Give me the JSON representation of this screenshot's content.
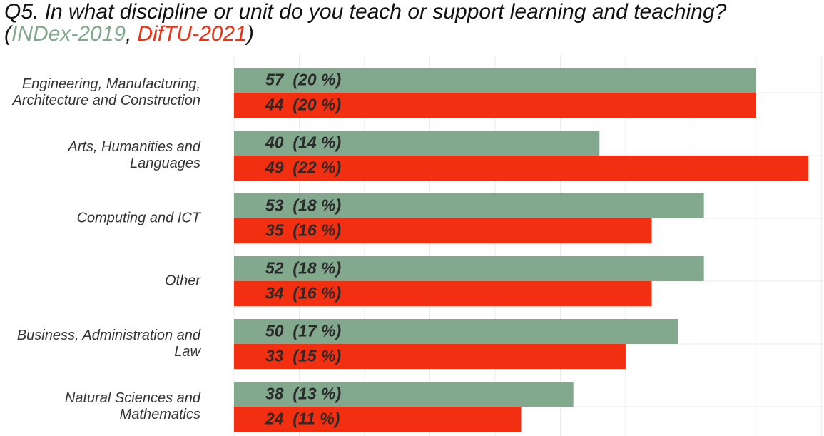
{
  "chart_data": {
    "type": "bar",
    "orientation": "horizontal",
    "title": "Q5. In what discipline or unit do you teach or support learning and teaching?",
    "legend": {
      "open": "(",
      "separator": ",",
      "close": ")"
    },
    "categories": [
      "Engineering, Manufacturing,\nArchitecture and Construction",
      "Arts, Humanities and\nLanguages",
      "Computing and ICT",
      "Other",
      "Business, Administration and\nLaw",
      "Natural Sciences and\nMathematics"
    ],
    "series": [
      {
        "name": "INDex-2019",
        "color": "#82a88e",
        "values": [
          20,
          14,
          18,
          18,
          17,
          13
        ],
        "value_labels": [
          "57  (20 %)",
          "40  (14 %)",
          "53  (18 %)",
          "52  (18 %)",
          "50  (17 %)",
          "38  (13 %)"
        ]
      },
      {
        "name": "DifTU-2021",
        "color": "#f22f10",
        "values": [
          20,
          22,
          16,
          16,
          15,
          11
        ],
        "value_labels": [
          "44  (20 %)",
          "49  (22 %)",
          "35  (16 %)",
          "34  (16 %)",
          "33  (15 %)",
          "24  (11 %)"
        ]
      }
    ],
    "xlim": [
      0,
      22.6
    ],
    "xticks": [
      0,
      2.5,
      5,
      7.5,
      10,
      12.5,
      15,
      17.5,
      20,
      22.5
    ],
    "grid": true
  }
}
